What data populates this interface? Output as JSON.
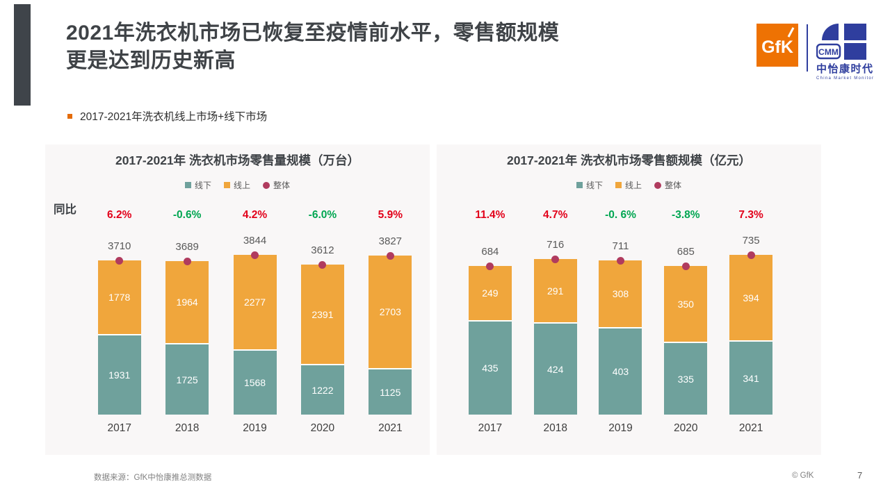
{
  "slide": {
    "title_line1": "2021年洗衣机市场已恢复至疫情前水平，零售额规模",
    "title_line2": "更是达到历史新高",
    "bullet": "2017-2021年洗衣机线上市场+线下市场",
    "source": "数据来源：GfK中怡康推总测数据",
    "copyright": "© GfK",
    "page_number": "7"
  },
  "logos": {
    "gfk": "GfK",
    "cmm_acronym": "CMM",
    "cmm_name": "中怡康时代",
    "cmm_sub": "China Market Monitor"
  },
  "colors": {
    "accent_dark": "#3F444A",
    "panel_bg": "#F9F7F7",
    "gfk_orange": "#EE7203",
    "cmm_blue": "#2F3E9E",
    "bullet_orange": "#E46C0A",
    "offline_teal": "#6FA19C",
    "online_orange": "#F0A63C",
    "total_maroon": "#B03B5E",
    "growth_up_red": "#E2001A",
    "growth_down_green": "#00A651"
  },
  "chart_data": [
    {
      "type": "bar",
      "stacked": true,
      "title": "2017-2021年 洗衣机市场零售量规模（万台）",
      "unit": "万台",
      "yoy_label": "同比",
      "categories": [
        "2017",
        "2018",
        "2019",
        "2020",
        "2021"
      ],
      "series": [
        {
          "name": "线下",
          "values": [
            1931,
            1725,
            1568,
            1222,
            1125
          ]
        },
        {
          "name": "线上",
          "values": [
            1778,
            1964,
            2277,
            2391,
            2703
          ]
        },
        {
          "name": "整体",
          "type": "marker",
          "values": [
            3710,
            3689,
            3844,
            3612,
            3827
          ]
        }
      ],
      "yoy": [
        "6.2%",
        "-0.6%",
        "4.2%",
        "-6.0%",
        "5.9%"
      ],
      "legend": [
        {
          "label": "线下",
          "color": "#6FA19C",
          "shape": "square"
        },
        {
          "label": "线上",
          "color": "#F0A63C",
          "shape": "square"
        },
        {
          "label": "整体",
          "color": "#B03B5E",
          "shape": "circle"
        }
      ],
      "legend_position": "top",
      "grid": false
    },
    {
      "type": "bar",
      "stacked": true,
      "title": "2017-2021年 洗衣机市场零售额规模（亿元）",
      "unit": "亿元",
      "categories": [
        "2017",
        "2018",
        "2019",
        "2020",
        "2021"
      ],
      "series": [
        {
          "name": "线下",
          "values": [
            435,
            424,
            403,
            335,
            341
          ]
        },
        {
          "name": "线上",
          "values": [
            249,
            291,
            308,
            350,
            394
          ]
        },
        {
          "name": "整体",
          "type": "marker",
          "values": [
            684,
            716,
            711,
            685,
            735
          ]
        }
      ],
      "yoy": [
        "11.4%",
        "4.7%",
        "-0. 6%",
        "-3.8%",
        "7.3%"
      ],
      "legend": [
        {
          "label": "线下",
          "color": "#6FA19C",
          "shape": "square"
        },
        {
          "label": "线上",
          "color": "#F0A63C",
          "shape": "square"
        },
        {
          "label": "整体",
          "color": "#B03B5E",
          "shape": "circle"
        }
      ],
      "legend_position": "top",
      "grid": false
    }
  ]
}
